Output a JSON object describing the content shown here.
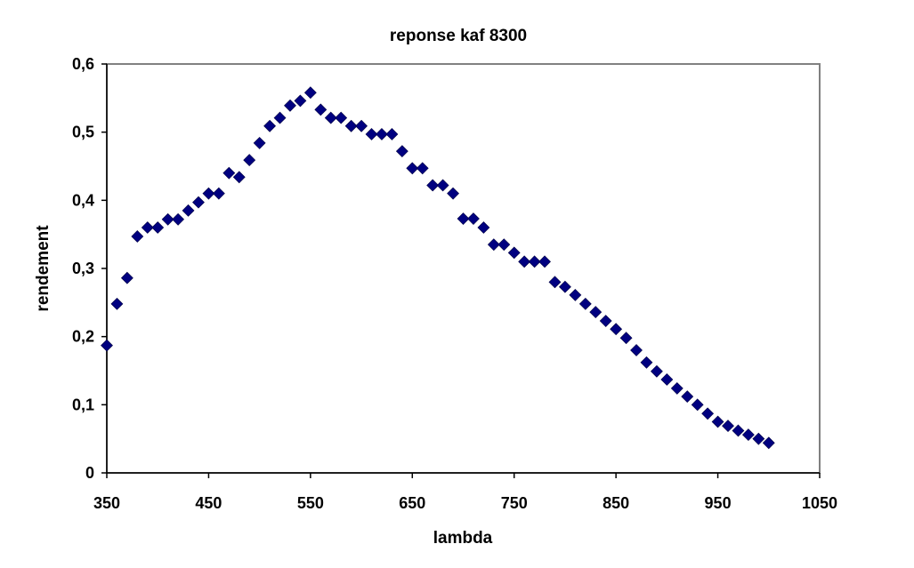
{
  "chart_data": {
    "type": "scatter",
    "title": "reponse kaf 8300",
    "xlabel": "lambda",
    "ylabel": "rendement",
    "xlim": [
      350,
      1050
    ],
    "ylim": [
      0,
      0.6
    ],
    "x_ticks": [
      350,
      450,
      550,
      650,
      750,
      850,
      950,
      1050
    ],
    "y_ticks": [
      0,
      0.1,
      0.2,
      0.3,
      0.4,
      0.5,
      0.6
    ],
    "y_tick_labels": [
      "0",
      "0,1",
      "0,2",
      "0,3",
      "0,4",
      "0,5",
      "0,6"
    ],
    "grid": false,
    "legend": "none",
    "marker": "diamond",
    "marker_color": "#000080",
    "series": [
      {
        "x": [
          350,
          360,
          370,
          380,
          390,
          400,
          410,
          420,
          430,
          440,
          450,
          460,
          470,
          480,
          490,
          500,
          510,
          520,
          530,
          540,
          550,
          560,
          570,
          580,
          590,
          600,
          610,
          620,
          630,
          640,
          650,
          660,
          670,
          680,
          690,
          700,
          710,
          720,
          730,
          740,
          750,
          760,
          770,
          780,
          790,
          800,
          810,
          820,
          830,
          840,
          850,
          860,
          870,
          880,
          890,
          900,
          910,
          920,
          930,
          940,
          950,
          960,
          970,
          980,
          990,
          1000
        ],
        "y": [
          0.187,
          0.248,
          0.286,
          0.347,
          0.36,
          0.36,
          0.372,
          0.372,
          0.385,
          0.397,
          0.41,
          0.41,
          0.44,
          0.434,
          0.459,
          0.484,
          0.509,
          0.521,
          0.539,
          0.546,
          0.558,
          0.533,
          0.521,
          0.521,
          0.509,
          0.509,
          0.497,
          0.497,
          0.497,
          0.472,
          0.447,
          0.447,
          0.422,
          0.422,
          0.41,
          0.373,
          0.373,
          0.36,
          0.335,
          0.335,
          0.323,
          0.31,
          0.31,
          0.31,
          0.28,
          0.273,
          0.261,
          0.248,
          0.236,
          0.223,
          0.211,
          0.198,
          0.18,
          0.162,
          0.149,
          0.137,
          0.124,
          0.112,
          0.1,
          0.087,
          0.075,
          0.069,
          0.062,
          0.056,
          0.05,
          0.044
        ]
      }
    ]
  }
}
